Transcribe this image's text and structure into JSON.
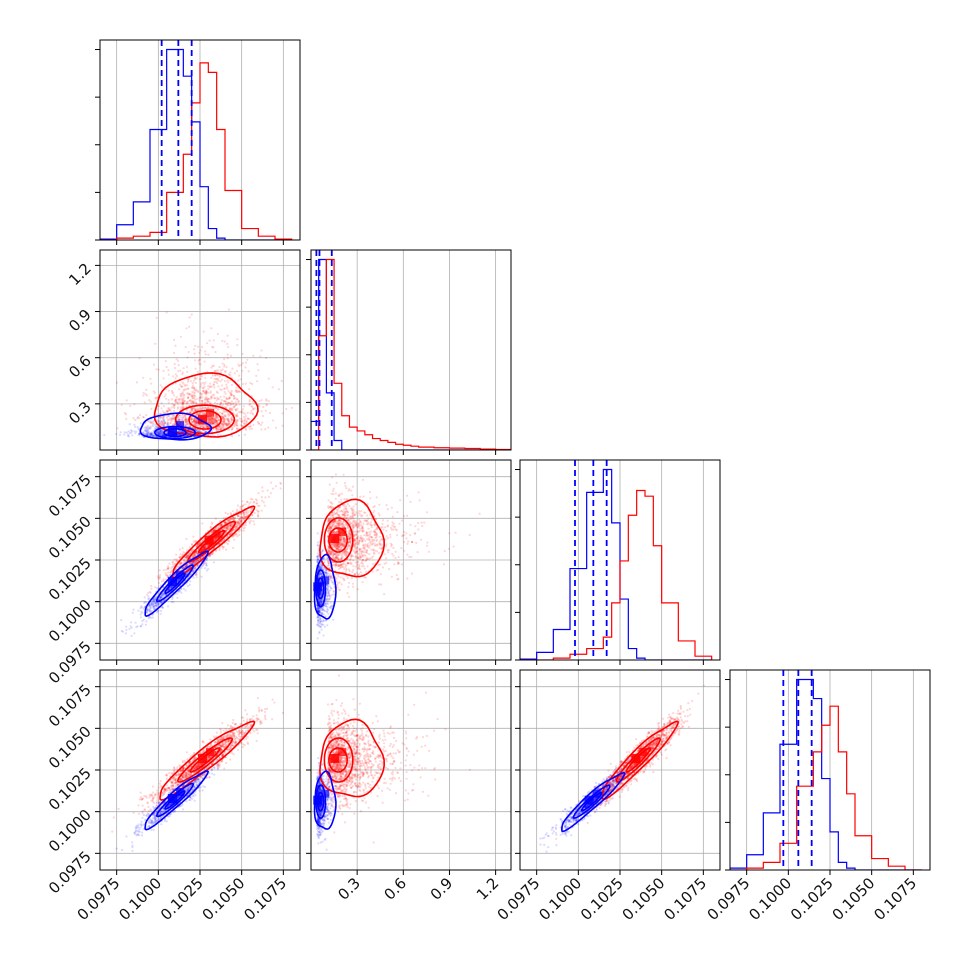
{
  "chart_data": {
    "type": "corner",
    "title": "",
    "colors": {
      "blue": "#0000ff",
      "red": "#ff0000",
      "grid": "#b0b0b0",
      "frame": "#000000"
    },
    "grid": true,
    "parameters": [
      {
        "range": [
          0.0965,
          0.1085
        ],
        "ticks": [
          0.0975,
          0.1,
          0.1025,
          0.105,
          0.1075
        ],
        "tick_labels": [
          "0.0975",
          "0.1000",
          "0.1025",
          "0.1050",
          "0.1075"
        ]
      },
      {
        "range": [
          0.0,
          1.3
        ],
        "ticks": [
          0.3,
          0.6,
          0.9,
          1.2
        ],
        "tick_labels": [
          "0.3",
          "0.6",
          "0.9",
          "1.2"
        ]
      },
      {
        "range": [
          0.0965,
          0.1085
        ],
        "ticks": [
          0.0975,
          0.1,
          0.1025,
          0.105,
          0.1075
        ],
        "tick_labels": [
          "0.0975",
          "0.1000",
          "0.1025",
          "0.1050",
          "0.1075"
        ]
      },
      {
        "range": [
          0.0965,
          0.1085
        ],
        "ticks": [
          0.0975,
          0.1,
          0.1025,
          0.105,
          0.1075
        ],
        "tick_labels": [
          "0.0975",
          "0.1000",
          "0.1025",
          "0.1050",
          "0.1075"
        ]
      }
    ],
    "histograms": [
      {
        "index": 0,
        "bin_edges": [
          0.0965,
          0.0975,
          0.0985,
          0.0995,
          0.1005,
          0.1015,
          0.102,
          0.1025,
          0.103,
          0.1035,
          0.104,
          0.105,
          0.106,
          0.107,
          0.108
        ],
        "blue": [
          0.5,
          8,
          20,
          58,
          100,
          86,
          62,
          28,
          6,
          1,
          0,
          0,
          0,
          0
        ],
        "red": [
          0,
          1,
          2,
          4,
          25,
          45,
          72,
          93,
          88,
          58,
          26,
          6,
          2,
          0.5
        ],
        "quantile_lines_blue": [
          0.1002,
          0.1012,
          0.102
        ]
      },
      {
        "index": 1,
        "bin_edges": [
          0.0,
          0.05,
          0.1,
          0.15,
          0.2,
          0.25,
          0.3,
          0.35,
          0.4,
          0.45,
          0.5,
          0.55,
          0.6,
          0.65,
          0.7,
          0.8,
          0.9,
          1.0,
          1.1,
          1.2,
          1.3
        ],
        "blue": [
          15,
          100,
          30,
          5,
          0,
          0,
          0,
          0,
          0,
          0,
          0,
          0,
          0,
          0,
          0,
          0,
          0,
          0,
          0,
          0
        ],
        "red": [
          0,
          60,
          100,
          35,
          18,
          12,
          10,
          8,
          6,
          5,
          4,
          3,
          2.5,
          2,
          1.5,
          1.2,
          1,
          0.8,
          0.5,
          0.3
        ],
        "quantile_lines_blue": [
          0.035,
          0.055,
          0.135
        ]
      },
      {
        "index": 2,
        "bin_edges": [
          0.0965,
          0.0975,
          0.0985,
          0.0995,
          0.1005,
          0.1015,
          0.102,
          0.1025,
          0.103,
          0.1035,
          0.104,
          0.1045,
          0.105,
          0.106,
          0.107,
          0.108
        ],
        "blue": [
          0.5,
          4,
          16,
          48,
          88,
          100,
          72,
          32,
          6,
          1,
          0,
          0,
          0,
          0,
          0
        ],
        "red": [
          0,
          0,
          1,
          3,
          6,
          12,
          30,
          52,
          76,
          89,
          86,
          60,
          30,
          10,
          2
        ],
        "quantile_lines_blue": [
          0.0998,
          0.1009,
          0.1017
        ]
      },
      {
        "index": 3,
        "bin_edges": [
          0.0965,
          0.0975,
          0.0985,
          0.0995,
          0.1005,
          0.1015,
          0.102,
          0.1025,
          0.103,
          0.1035,
          0.104,
          0.105,
          0.106,
          0.107,
          0.108
        ],
        "blue": [
          1,
          8,
          30,
          66,
          100,
          90,
          48,
          20,
          4,
          1,
          0,
          0,
          0,
          0
        ],
        "red": [
          0,
          1,
          4,
          14,
          44,
          62,
          76,
          86,
          62,
          40,
          18,
          6,
          2,
          0
        ],
        "quantile_lines_blue": [
          0.0997,
          0.1006,
          0.1014
        ]
      }
    ],
    "pairs": [
      {
        "row": 1,
        "col": 0,
        "red": {
          "center": [
            0.1028,
            0.19
          ],
          "sigma": [
            0.0016,
            0.12
          ]
        },
        "blue": {
          "center": [
            0.101,
            0.11
          ],
          "sigma": [
            0.0011,
            0.05
          ]
        }
      },
      {
        "row": 2,
        "col": 0,
        "red": {
          "center": [
            0.1032,
            0.1036
          ],
          "sigma": [
            0.0013,
            0.0011
          ]
        },
        "blue": {
          "center": [
            0.101,
            0.1011
          ],
          "sigma": [
            0.001,
            0.001
          ]
        }
      },
      {
        "row": 2,
        "col": 1,
        "red": {
          "center": [
            0.17,
            0.1037
          ],
          "sigma": [
            0.12,
            0.0012
          ]
        },
        "blue": {
          "center": [
            0.06,
            0.1008
          ],
          "sigma": [
            0.04,
            0.001
          ]
        }
      },
      {
        "row": 3,
        "col": 0,
        "red": {
          "center": [
            0.1028,
            0.1031
          ],
          "sigma": [
            0.0015,
            0.0012
          ]
        },
        "blue": {
          "center": [
            0.101,
            0.1007
          ],
          "sigma": [
            0.001,
            0.0009
          ]
        }
      },
      {
        "row": 3,
        "col": 1,
        "red": {
          "center": [
            0.17,
            0.1031
          ],
          "sigma": [
            0.12,
            0.0012
          ]
        },
        "blue": {
          "center": [
            0.06,
            0.1006
          ],
          "sigma": [
            0.04,
            0.0009
          ]
        }
      },
      {
        "row": 3,
        "col": 2,
        "red": {
          "center": [
            0.1036,
            0.1031
          ],
          "sigma": [
            0.0012,
            0.0012
          ]
        },
        "blue": {
          "center": [
            0.1008,
            0.1006
          ],
          "sigma": [
            0.001,
            0.0009
          ]
        }
      }
    ]
  }
}
